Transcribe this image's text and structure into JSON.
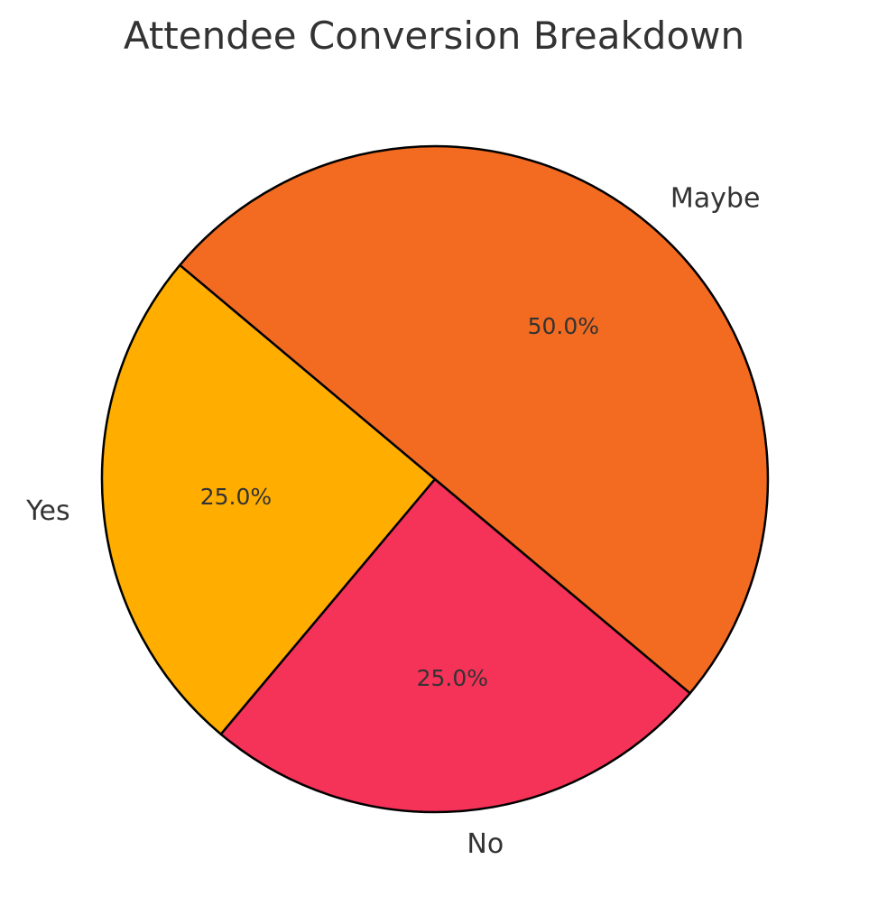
{
  "chart_data": {
    "type": "pie",
    "title": "Attendee Conversion Breakdown",
    "categories": [
      "Yes",
      "No",
      "Maybe"
    ],
    "values": [
      25.0,
      25.0,
      50.0
    ],
    "percent_labels": [
      "25.0%",
      "25.0%",
      "50.0%"
    ],
    "colors": [
      "#FFAE00",
      "#F53257",
      "#F26B21"
    ],
    "legend": "none"
  }
}
